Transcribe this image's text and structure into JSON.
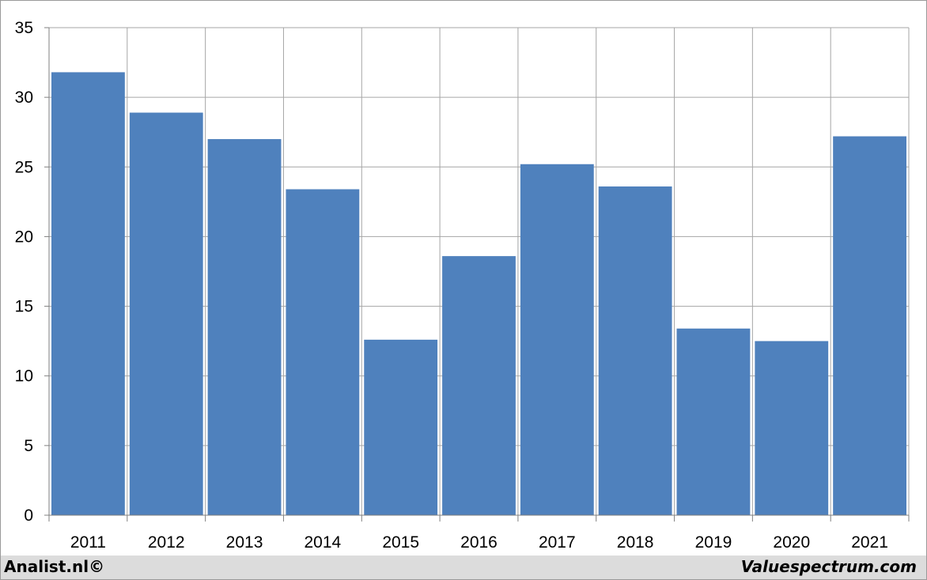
{
  "chart_data": {
    "type": "bar",
    "categories": [
      "2011",
      "2012",
      "2013",
      "2014",
      "2015",
      "2016",
      "2017",
      "2018",
      "2019",
      "2020",
      "2021"
    ],
    "values": [
      31.8,
      28.9,
      27.0,
      23.4,
      12.6,
      18.6,
      25.2,
      23.6,
      13.4,
      12.5,
      27.2
    ],
    "title": "",
    "xlabel": "",
    "ylabel": "",
    "ylim": [
      0,
      35
    ],
    "yticks": [
      0,
      5,
      10,
      15,
      20,
      25,
      30,
      35
    ],
    "grid": true,
    "legend": "none",
    "bar_color": "#4F81BD",
    "grid_color": "#a6a6a6"
  },
  "footer": {
    "left": "Analist.nl©",
    "right": "Valuespectrum.com"
  }
}
